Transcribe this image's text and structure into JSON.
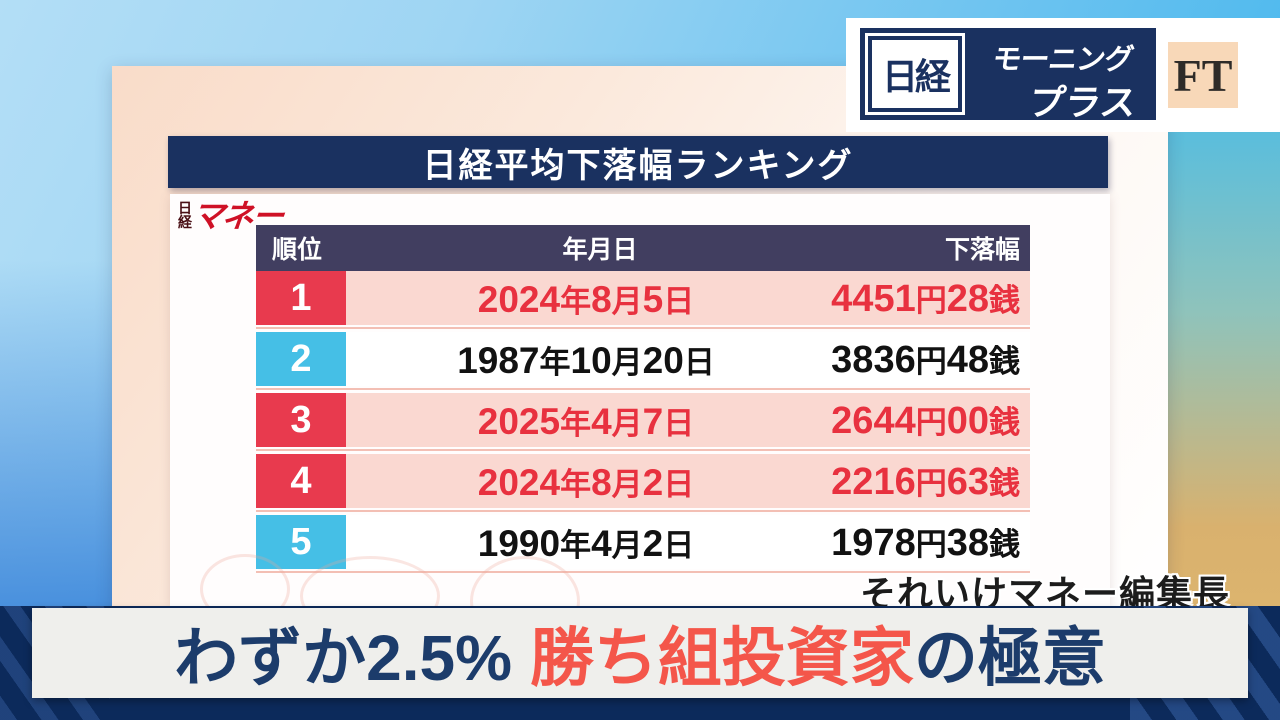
{
  "broadcast": {
    "nikkei_logo": "日経",
    "program_line1": "モーニング",
    "program_line2": "プラス",
    "ft_logo": "FT"
  },
  "panel": {
    "title": "日経平均下落幅ランキング",
    "magazine_logo_vertical": "日経",
    "magazine_logo_script": "マネー"
  },
  "table": {
    "headers": {
      "rank": "順位",
      "date": "年月日",
      "amount": "下落幅"
    },
    "rows": [
      {
        "rank": "1",
        "date": "2024年8月5日",
        "amount": "4451円28銭",
        "highlight": true
      },
      {
        "rank": "2",
        "date": "1987年10月20日",
        "amount": "3836円48銭",
        "highlight": false
      },
      {
        "rank": "3",
        "date": "2025年4月7日",
        "amount": "2644円00銭",
        "highlight": true
      },
      {
        "rank": "4",
        "date": "2024年8月2日",
        "amount": "2216円63銭",
        "highlight": true
      },
      {
        "rank": "5",
        "date": "1990年4月2日",
        "amount": "1978円38銭",
        "highlight": false
      }
    ]
  },
  "caption": "それいけマネー編集長",
  "banner": {
    "segments": [
      {
        "text": "わずか2.5% ",
        "color": "navy"
      },
      {
        "text": "勝ち組投資家",
        "color": "red"
      },
      {
        "text": "の極意",
        "color": "navy"
      }
    ]
  },
  "colors": {
    "title_bar_navy": "#1a3160",
    "table_header": "#413e60",
    "rank_red": "#e83a4e",
    "rank_cyan": "#45bfe6",
    "highlight_row_bg": "#fad8d1",
    "highlight_text_red": "#e8313f",
    "banner_navy": "#1c3c6b",
    "banner_red": "#f4564a",
    "ft_box_tan": "#f8d8b8",
    "bottom_band_navy": "#0c2a5b"
  },
  "chart_data": {
    "type": "table",
    "title": "日経平均下落幅ランキング",
    "columns": [
      "順位",
      "年月日",
      "下落幅"
    ],
    "rows": [
      [
        "1",
        "2024年8月5日",
        "4451円28銭"
      ],
      [
        "2",
        "1987年10月20日",
        "3836円48銭"
      ],
      [
        "3",
        "2025年4月7日",
        "2644円00銭"
      ],
      [
        "4",
        "2024年8月2日",
        "2216円63銭"
      ],
      [
        "5",
        "1990年4月2日",
        "1978円38銭"
      ]
    ],
    "decline_yen_values": [
      4451.28,
      3836.48,
      2644.0,
      2216.63,
      1978.38
    ],
    "highlighted_ranks": [
      1,
      3,
      4
    ]
  }
}
